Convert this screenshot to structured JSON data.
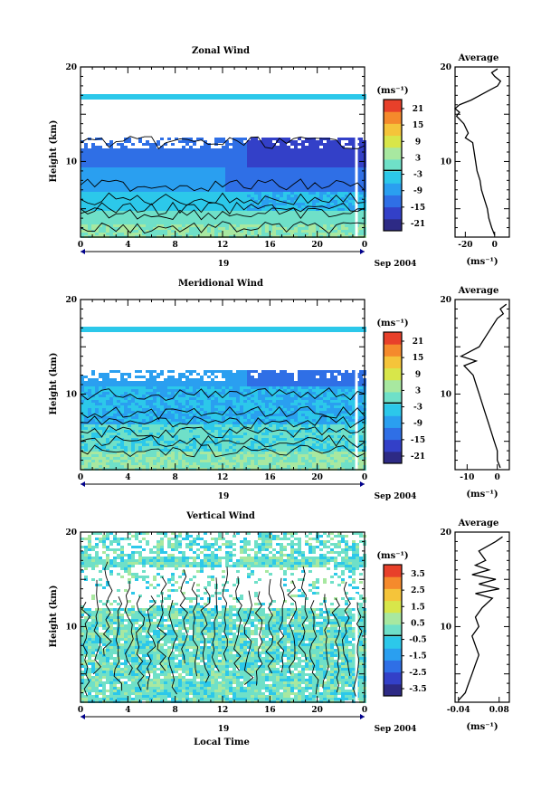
{
  "figure": {
    "xlabel": "Local Time",
    "date_label": "Sep 2004",
    "day_label": "19",
    "ylabel": "Height (km)",
    "unit_label": "(ms⁻¹)",
    "avg_title": "Average",
    "avg_xunit": "(ms⁻¹)"
  },
  "chart_data": [
    {
      "type": "heatmap",
      "title": "Zonal Wind",
      "xlabel": "",
      "ylabel": "Height (km)",
      "xlim": [
        0,
        24
      ],
      "ylim": [
        2,
        20
      ],
      "x_ticks": [
        "0",
        "4",
        "8",
        "12",
        "16",
        "20",
        "0"
      ],
      "y_ticks": [
        "10",
        "20"
      ],
      "colorbar": {
        "unit": "(ms⁻¹)",
        "tick_labels": [
          "21",
          "15",
          "9",
          "3",
          "-3",
          "-9",
          "-15",
          "-21"
        ],
        "range": [
          -24,
          24
        ]
      },
      "average_profile": {
        "title": "Average",
        "xunit": "(ms⁻¹)",
        "x_ticks": [
          "-20",
          "0"
        ],
        "xlim": [
          -27,
          10
        ],
        "y_ticks": [
          "10",
          "20"
        ],
        "height": [
          2.2,
          3,
          4,
          5,
          6,
          7,
          8,
          9,
          10,
          11,
          12,
          12.5,
          13,
          14,
          14.8,
          15.2,
          15.6,
          16,
          16.5,
          17,
          17.5,
          18,
          18.5,
          19,
          19.4,
          19.8
        ],
        "values": [
          0,
          -2,
          -4,
          -5,
          -7,
          -9,
          -10,
          -12,
          -13,
          -14,
          -15,
          -20,
          -18,
          -21,
          -26,
          -24,
          -27,
          -24,
          -16,
          -10,
          -4,
          2,
          4,
          0,
          -2,
          2
        ]
      }
    },
    {
      "type": "heatmap",
      "title": "Meridional Wind",
      "xlabel": "",
      "ylabel": "Height (km)",
      "xlim": [
        0,
        24
      ],
      "ylim": [
        2,
        20
      ],
      "x_ticks": [
        "0",
        "4",
        "8",
        "12",
        "16",
        "20",
        "0"
      ],
      "y_ticks": [
        "10",
        "20"
      ],
      "colorbar": {
        "unit": "(ms⁻¹)",
        "tick_labels": [
          "21",
          "15",
          "9",
          "3",
          "-3",
          "-9",
          "-15",
          "-21"
        ],
        "range": [
          -24,
          24
        ]
      },
      "average_profile": {
        "title": "Average",
        "xunit": "(ms⁻¹)",
        "x_ticks": [
          "-10",
          "0"
        ],
        "xlim": [
          -14,
          4
        ],
        "y_ticks": [
          "10",
          "20"
        ],
        "height": [
          2.2,
          3,
          4,
          5,
          6,
          7,
          8,
          9,
          10,
          11,
          12,
          13,
          13.5,
          14,
          14.5,
          15,
          15.5,
          16,
          17,
          18,
          18.5,
          19,
          19.5
        ],
        "values": [
          1,
          0,
          0,
          -1,
          -2,
          -3,
          -4,
          -5,
          -6,
          -7,
          -8,
          -11,
          -7,
          -12,
          -9,
          -6,
          -5,
          -4,
          -2,
          0,
          2,
          1,
          3
        ]
      }
    },
    {
      "type": "heatmap",
      "title": "Vertical Wind",
      "xlabel": "Local Time",
      "ylabel": "Height (km)",
      "xlim": [
        0,
        24
      ],
      "ylim": [
        2,
        20
      ],
      "x_ticks": [
        "0",
        "4",
        "8",
        "12",
        "16",
        "20",
        "0"
      ],
      "y_ticks": [
        "10",
        "20"
      ],
      "colorbar": {
        "unit": "(ms⁻¹)",
        "tick_labels": [
          "3.5",
          "2.5",
          "1.5",
          "0.5",
          "-0.5",
          "-1.5",
          "-2.5",
          "-3.5"
        ],
        "range": [
          -4,
          4
        ]
      },
      "average_profile": {
        "title": "Average",
        "xunit": "(ms⁻¹)",
        "x_ticks": [
          "-0.04",
          "0.08"
        ],
        "xlim": [
          -0.05,
          0.11
        ],
        "y_ticks": [
          "10",
          "20"
        ],
        "height": [
          2.2,
          3,
          4,
          5,
          6,
          7,
          8,
          9,
          10,
          11,
          12,
          13,
          13.5,
          14,
          14.5,
          15,
          15.5,
          16,
          16.5,
          17,
          18,
          19,
          19.5
        ],
        "values": [
          -0.04,
          -0.02,
          -0.01,
          0.0,
          0.01,
          0.02,
          0.01,
          0.0,
          0.02,
          0.01,
          0.03,
          0.06,
          0.01,
          0.08,
          0.02,
          0.07,
          0.0,
          0.05,
          0.01,
          0.04,
          0.02,
          0.07,
          0.09
        ]
      }
    }
  ],
  "colors": {
    "ramp": [
      "#2d2a85",
      "#3340c8",
      "#2f6fe6",
      "#2a9ff0",
      "#2cc8ea",
      "#6fe0c8",
      "#a8e8a0",
      "#d8e64a",
      "#f5c43a",
      "#f58a2c",
      "#e8402a"
    ]
  }
}
